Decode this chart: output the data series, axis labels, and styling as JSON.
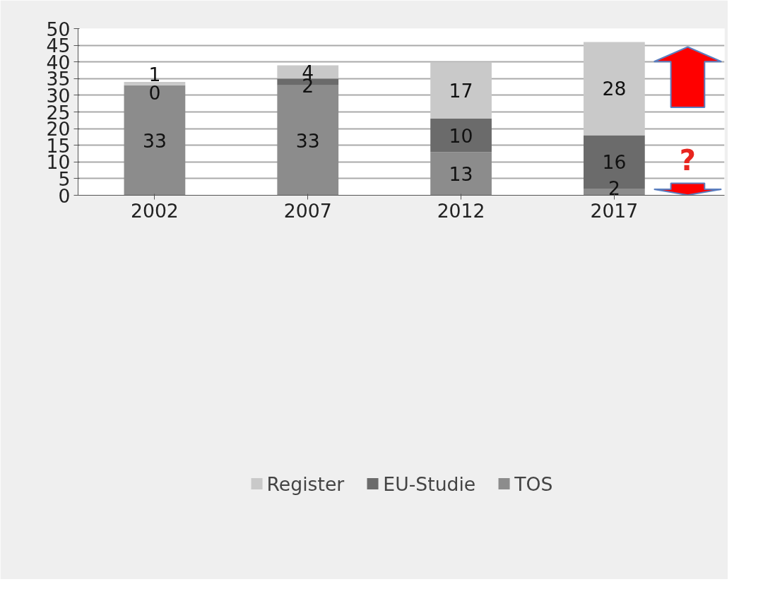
{
  "chart_data": {
    "type": "bar",
    "stacked": true,
    "categories": [
      "2002",
      "2007",
      "2012",
      "2017"
    ],
    "series": [
      {
        "name": "TOS",
        "color": "#8c8c8c",
        "values": [
          33,
          33,
          13,
          2
        ]
      },
      {
        "name": "EU-Studie",
        "color": "#6b6b6b",
        "values": [
          0,
          2,
          10,
          16
        ]
      },
      {
        "name": "Register",
        "color": "#c9c9c9",
        "values": [
          1,
          4,
          17,
          28
        ]
      }
    ],
    "ylim": [
      0,
      50
    ],
    "yticks": [
      0,
      5,
      10,
      15,
      20,
      25,
      30,
      35,
      40,
      45,
      50
    ],
    "grid": "y",
    "legend": "bottom",
    "data_labels": true,
    "annotations": [
      "?"
    ]
  }
}
